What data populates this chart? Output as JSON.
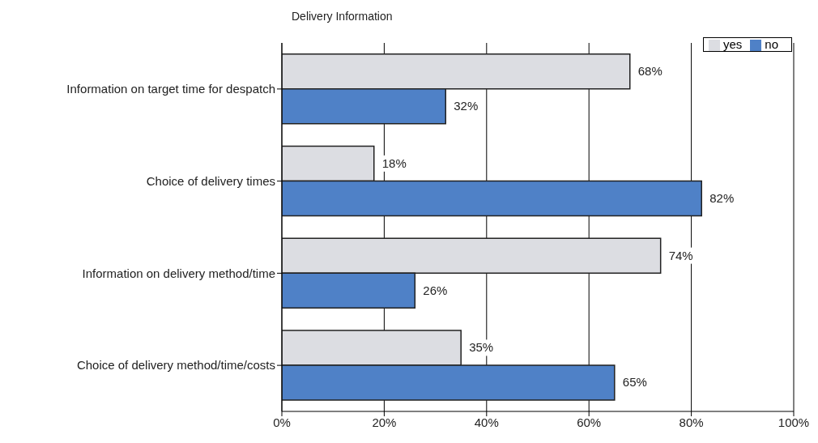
{
  "chart_data": {
    "type": "bar",
    "orientation": "horizontal",
    "title": "Delivery Information",
    "categories": [
      "Information on target time for despatch",
      "Choice of delivery times",
      "Information on delivery method/time",
      "Choice of delivery method/time/costs"
    ],
    "series": [
      {
        "name": "yes",
        "color": "#dcdde2",
        "values": [
          68,
          18,
          74,
          35
        ],
        "value_labels": [
          "68%",
          "18%",
          "74%",
          "35%"
        ]
      },
      {
        "name": "no",
        "color": "#4f81c7",
        "values": [
          32,
          82,
          26,
          65
        ],
        "value_labels": [
          "32%",
          "82%",
          "26%",
          "65%"
        ]
      }
    ],
    "xlim": [
      0,
      100
    ],
    "xticks": [
      {
        "value": 0,
        "label": "0%"
      },
      {
        "value": 20,
        "label": "20%"
      },
      {
        "value": 40,
        "label": "40%"
      },
      {
        "value": 60,
        "label": "60%"
      },
      {
        "value": 80,
        "label": "80%"
      },
      {
        "value": 100,
        "label": "100%"
      }
    ],
    "grid": "x",
    "legend": "top right"
  }
}
